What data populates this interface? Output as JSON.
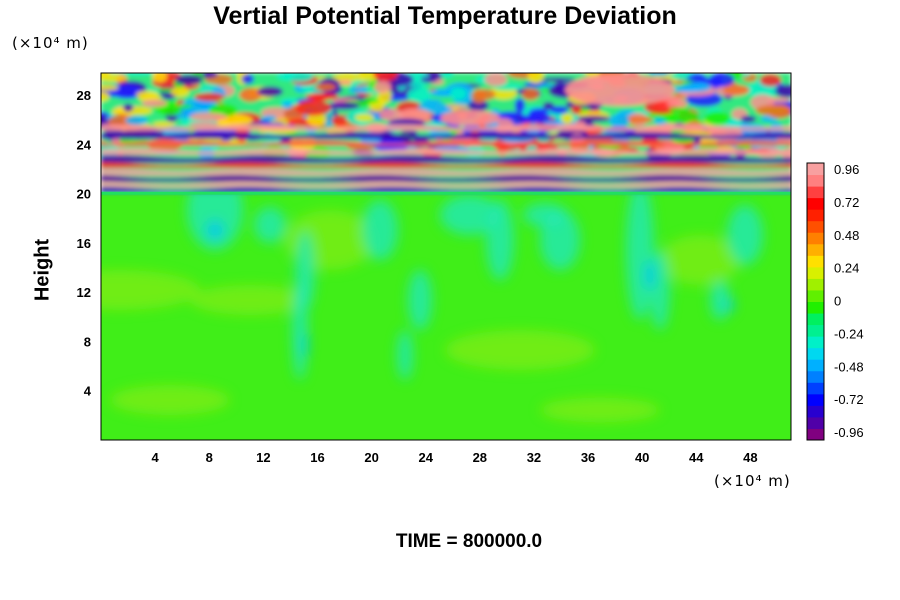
{
  "chart_data": {
    "type": "heatmap",
    "title": "Vertial Potential Temperature Deviation",
    "ylabel": "Height",
    "x_unit": "(×10⁴ m)",
    "y_unit": "(×10⁴ m)",
    "footer": "TIME = 800000.0",
    "xlim": [
      0,
      51
    ],
    "ylim": [
      0,
      29.8
    ],
    "x_ticks": [
      4,
      8,
      12,
      16,
      20,
      24,
      28,
      32,
      36,
      40,
      44,
      48
    ],
    "y_ticks": [
      4,
      8,
      12,
      16,
      20,
      24,
      28
    ],
    "colorbar": {
      "range": [
        -0.96,
        0.96
      ],
      "ticks": [
        "0.96",
        "0.72",
        "0.48",
        "0.24",
        "0",
        "-0.24",
        "-0.48",
        "-0.72",
        "-0.96"
      ],
      "colors": [
        "#800080",
        "#5000a8",
        "#2800d0",
        "#0000ff",
        "#0040ff",
        "#0080ff",
        "#00b0ff",
        "#00d8f0",
        "#00f0c8",
        "#00f090",
        "#00f060",
        "#20f000",
        "#60f000",
        "#a0f000",
        "#d8f000",
        "#ffe000",
        "#ffb000",
        "#ff8000",
        "#ff5000",
        "#ff2000",
        "#ff0000",
        "#ff4040",
        "#ff8080",
        "#f8a0a0"
      ]
    },
    "field_description": {
      "stratosphere_top": 20,
      "upper_band_values": "alternating strong positive and negative deviations (about ±0.96)",
      "lower_region_values": "near zero, mostly 0 to -0.24 with weak positive patches"
    }
  }
}
